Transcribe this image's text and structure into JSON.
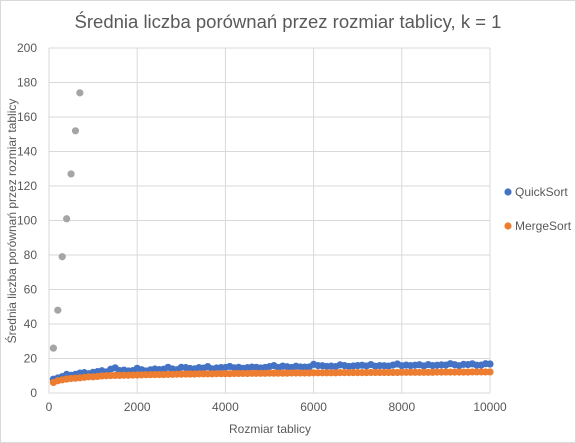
{
  "chart_data": {
    "type": "scatter",
    "title": "Średnia liczba porównań przez rozmiar tablicy, k = 1",
    "xlabel": "Rozmiar tablicy",
    "ylabel": "Średnia liczba porównań przez rozmiar tablicy",
    "xlim": [
      0,
      10000
    ],
    "ylim": [
      0,
      200
    ],
    "x_ticks": [
      0,
      2000,
      4000,
      6000,
      8000,
      10000
    ],
    "y_ticks": [
      0,
      20,
      40,
      60,
      80,
      100,
      120,
      140,
      160,
      180,
      200
    ],
    "grid": true,
    "legend_position": "right",
    "colors": {
      "QuickSort": "#4472c4",
      "MergeSort": "#ed7d31",
      "unnamed": "#a5a5a5"
    },
    "series": [
      {
        "name": "QuickSort",
        "x": [
          100,
          200,
          300,
          400,
          500,
          600,
          700,
          800,
          900,
          1000,
          1100,
          1200,
          1300,
          1400,
          1500,
          1600,
          1700,
          1800,
          1900,
          2000,
          2100,
          2200,
          2300,
          2400,
          2500,
          2600,
          2700,
          2800,
          2900,
          3000,
          3100,
          3200,
          3300,
          3400,
          3500,
          3600,
          3700,
          3800,
          3900,
          4000,
          4100,
          4200,
          4300,
          4400,
          4500,
          4600,
          4700,
          4800,
          4900,
          5000,
          5100,
          5200,
          5300,
          5400,
          5500,
          5600,
          5700,
          5800,
          5900,
          6000,
          6100,
          6200,
          6300,
          6400,
          6500,
          6600,
          6700,
          6800,
          6900,
          7000,
          7100,
          7200,
          7300,
          7400,
          7500,
          7600,
          7700,
          7800,
          7900,
          8000,
          8100,
          8200,
          8300,
          8400,
          8500,
          8600,
          8700,
          8800,
          8900,
          9000,
          9100,
          9200,
          9300,
          9400,
          9500,
          9600,
          9700,
          9800,
          9900,
          10000
        ],
        "y": [
          8.0,
          8.7,
          9.5,
          10.8,
          10.2,
          10.8,
          11.5,
          11.8,
          11.2,
          12.0,
          12.4,
          12.9,
          12.2,
          13.8,
          14.6,
          13.0,
          13.3,
          12.8,
          13.0,
          14.3,
          13.5,
          12.8,
          13.4,
          13.9,
          13.6,
          13.8,
          14.9,
          13.9,
          13.5,
          14.9,
          14.7,
          14.2,
          14.0,
          14.7,
          14.4,
          15.3,
          14.0,
          14.5,
          14.7,
          14.8,
          15.4,
          14.6,
          14.9,
          14.3,
          14.7,
          15.0,
          14.9,
          14.5,
          14.8,
          15.3,
          15.9,
          14.8,
          15.6,
          15.2,
          14.8,
          15.5,
          15.1,
          15.0,
          15.1,
          16.6,
          15.9,
          15.8,
          15.4,
          15.6,
          15.3,
          16.3,
          15.9,
          15.4,
          15.7,
          15.9,
          16.1,
          15.7,
          16.5,
          15.5,
          15.9,
          15.8,
          15.6,
          16.2,
          16.8,
          15.8,
          16.2,
          15.9,
          16.1,
          16.4,
          15.7,
          16.5,
          15.9,
          16.1,
          16.3,
          16.2,
          17.0,
          16.4,
          15.8,
          16.6,
          16.5,
          16.9,
          16.1,
          16.2,
          17.0,
          16.8
        ]
      },
      {
        "name": "MergeSort",
        "x": [
          100,
          200,
          300,
          400,
          500,
          600,
          700,
          800,
          900,
          1000,
          1100,
          1200,
          1300,
          1400,
          1500,
          1600,
          1700,
          1800,
          1900,
          2000,
          2100,
          2200,
          2300,
          2400,
          2500,
          2600,
          2700,
          2800,
          2900,
          3000,
          3100,
          3200,
          3300,
          3400,
          3500,
          3600,
          3700,
          3800,
          3900,
          4000,
          4100,
          4200,
          4300,
          4400,
          4500,
          4600,
          4700,
          4800,
          4900,
          5000,
          5100,
          5200,
          5300,
          5400,
          5500,
          5600,
          5700,
          5800,
          5900,
          6000,
          6100,
          6200,
          6300,
          6400,
          6500,
          6600,
          6700,
          6800,
          6900,
          7000,
          7100,
          7200,
          7300,
          7400,
          7500,
          7600,
          7700,
          7800,
          7900,
          8000,
          8100,
          8200,
          8300,
          8400,
          8500,
          8600,
          8700,
          8800,
          8900,
          9000,
          9100,
          9200,
          9300,
          9400,
          9500,
          9600,
          9700,
          9800,
          9900,
          10000
        ],
        "y": [
          6.1,
          7.1,
          7.6,
          8.1,
          8.4,
          8.6,
          8.8,
          9.1,
          9.4,
          9.4,
          9.6,
          9.9,
          10.0,
          10.1,
          10.2,
          10.2,
          10.3,
          10.3,
          10.4,
          10.4,
          10.5,
          10.6,
          10.6,
          10.7,
          10.7,
          10.7,
          10.8,
          10.8,
          10.9,
          10.9,
          11.0,
          11.0,
          11.0,
          11.1,
          11.1,
          11.1,
          11.1,
          11.2,
          11.2,
          11.2,
          11.2,
          11.3,
          11.3,
          11.3,
          11.3,
          11.4,
          11.4,
          11.4,
          11.4,
          11.5,
          11.5,
          11.5,
          11.5,
          11.5,
          11.6,
          11.6,
          11.6,
          11.6,
          11.6,
          11.7,
          11.7,
          11.7,
          11.7,
          11.7,
          11.7,
          11.8,
          11.8,
          11.8,
          11.8,
          11.8,
          11.8,
          11.8,
          11.9,
          11.9,
          11.9,
          11.9,
          11.9,
          11.9,
          11.9,
          12.0,
          12.0,
          12.0,
          12.0,
          12.0,
          12.0,
          12.0,
          12.0,
          12.1,
          12.1,
          12.1,
          12.1,
          12.1,
          12.1,
          12.1,
          12.1,
          12.2,
          12.2,
          12.2,
          12.2,
          12.2
        ]
      },
      {
        "x": [
          100,
          200,
          300,
          400,
          500,
          600,
          700
        ],
        "y": [
          26,
          48,
          79,
          101,
          127,
          152,
          174
        ]
      }
    ]
  }
}
